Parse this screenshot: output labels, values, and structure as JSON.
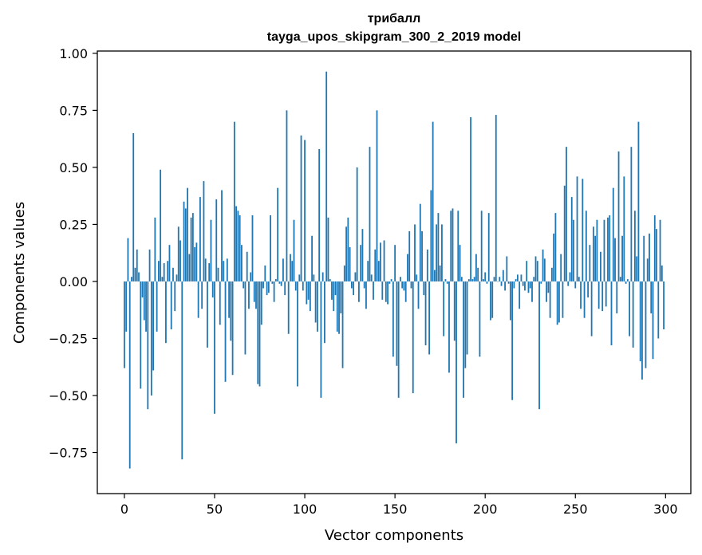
{
  "chart_data": {
    "type": "bar",
    "title": "трибалл",
    "subtitle": "tayga_upos_skipgram_300_2_2019 model",
    "xlabel": "Vector components",
    "ylabel": "Components values",
    "xlim": [
      -15,
      314
    ],
    "ylim": [
      -0.93,
      1.01
    ],
    "xticks": [
      0,
      50,
      100,
      150,
      200,
      250,
      300
    ],
    "yticks": [
      -0.75,
      -0.5,
      -0.25,
      0.0,
      0.25,
      0.5,
      0.75,
      1.0
    ],
    "xtick_labels": [
      "0",
      "50",
      "100",
      "150",
      "200",
      "250",
      "300"
    ],
    "ytick_labels": [
      "−0.75",
      "−0.50",
      "−0.25",
      "0.00",
      "0.25",
      "0.50",
      "0.75",
      "1.00"
    ],
    "grid": false,
    "bar_color": "#1f77b4",
    "values": [
      -0.38,
      -0.22,
      0.19,
      -0.82,
      0.02,
      0.65,
      0.06,
      0.14,
      0.04,
      -0.47,
      -0.07,
      -0.17,
      -0.22,
      -0.56,
      0.14,
      -0.5,
      -0.39,
      0.28,
      -0.22,
      0.09,
      0.49,
      0.02,
      0.08,
      -0.27,
      0.09,
      0.16,
      -0.21,
      0.06,
      -0.13,
      0.03,
      0.24,
      0.18,
      -0.78,
      0.35,
      0.32,
      0.41,
      0.12,
      0.28,
      0.3,
      0.15,
      0.17,
      -0.16,
      0.37,
      -0.12,
      0.44,
      0.1,
      -0.29,
      0.08,
      0.27,
      -0.07,
      -0.58,
      0.36,
      0.06,
      -0.19,
      0.4,
      0.09,
      -0.44,
      0.1,
      -0.16,
      -0.26,
      -0.41,
      0.7,
      0.33,
      0.31,
      0.29,
      0.16,
      -0.03,
      -0.32,
      0.13,
      -0.12,
      0.04,
      0.29,
      -0.09,
      -0.12,
      -0.45,
      -0.46,
      -0.19,
      -0.03,
      0.07,
      -0.06,
      -0.05,
      0.29,
      -0.01,
      -0.09,
      0.01,
      0.41,
      -0.01,
      -0.02,
      0.1,
      -0.06,
      0.75,
      -0.23,
      0.12,
      0.09,
      0.27,
      -0.04,
      -0.46,
      0.03,
      0.64,
      -0.04,
      0.62,
      -0.1,
      -0.08,
      -0.13,
      0.2,
      0.03,
      -0.18,
      -0.22,
      0.58,
      -0.51,
      0.04,
      -0.27,
      0.92,
      0.28,
      0.01,
      -0.08,
      -0.13,
      -0.06,
      -0.22,
      -0.23,
      -0.14,
      -0.38,
      0.07,
      0.24,
      0.28,
      0.15,
      -0.03,
      -0.06,
      0.04,
      0.5,
      -0.09,
      0.16,
      0.23,
      -0.03,
      -0.12,
      0.09,
      0.59,
      0.03,
      -0.08,
      0.14,
      0.75,
      0.09,
      0.17,
      -0.08,
      0.18,
      -0.09,
      -0.1,
      -0.01,
      0.01,
      -0.33,
      0.16,
      -0.37,
      -0.51,
      0.02,
      -0.03,
      -0.04,
      -0.09,
      0.12,
      0.22,
      -0.03,
      -0.49,
      0.25,
      0.03,
      -0.12,
      0.34,
      0.22,
      -0.06,
      -0.28,
      0.14,
      -0.32,
      0.4,
      0.7,
      0.05,
      0.25,
      0.3,
      0.07,
      0.25,
      -0.24,
      0.01,
      -0.01,
      -0.4,
      0.31,
      0.32,
      -0.26,
      -0.71,
      0.31,
      0.16,
      0.02,
      -0.51,
      -0.38,
      -0.32,
      0.01,
      0.72,
      0.01,
      0.02,
      0.12,
      0.06,
      -0.33,
      0.31,
      0.01,
      0.04,
      -0.01,
      0.3,
      -0.17,
      -0.16,
      0.02,
      0.73,
      0.0,
      0.02,
      -0.02,
      0.05,
      -0.04,
      0.11,
      -0.01,
      -0.17,
      -0.52,
      -0.03,
      0.01,
      0.03,
      -0.12,
      0.03,
      -0.02,
      -0.04,
      0.09,
      -0.05,
      -0.03,
      -0.09,
      0.02,
      0.11,
      0.09,
      -0.56,
      -0.01,
      0.14,
      0.1,
      -0.09,
      -0.05,
      -0.16,
      0.06,
      0.21,
      0.3,
      -0.19,
      -0.18,
      0.12,
      -0.16,
      0.42,
      0.59,
      -0.02,
      0.04,
      0.37,
      0.27,
      -0.03,
      0.46,
      0.02,
      -0.12,
      0.45,
      -0.16,
      0.31,
      -0.07,
      0.16,
      -0.24,
      0.24,
      0.2,
      0.27,
      -0.12,
      0.13,
      -0.13,
      0.27,
      -0.11,
      0.28,
      0.29,
      -0.28,
      0.41,
      0.19,
      -0.14,
      0.57,
      0.02,
      0.2,
      0.46,
      -0.01,
      0.01,
      -0.24,
      0.59,
      -0.29,
      0.31,
      0.11,
      0.7,
      -0.35,
      -0.43,
      0.2,
      -0.38,
      0.1,
      0.21,
      -0.14,
      -0.34,
      0.29,
      0.23,
      -0.25,
      0.27,
      0.07,
      -0.21
    ]
  }
}
